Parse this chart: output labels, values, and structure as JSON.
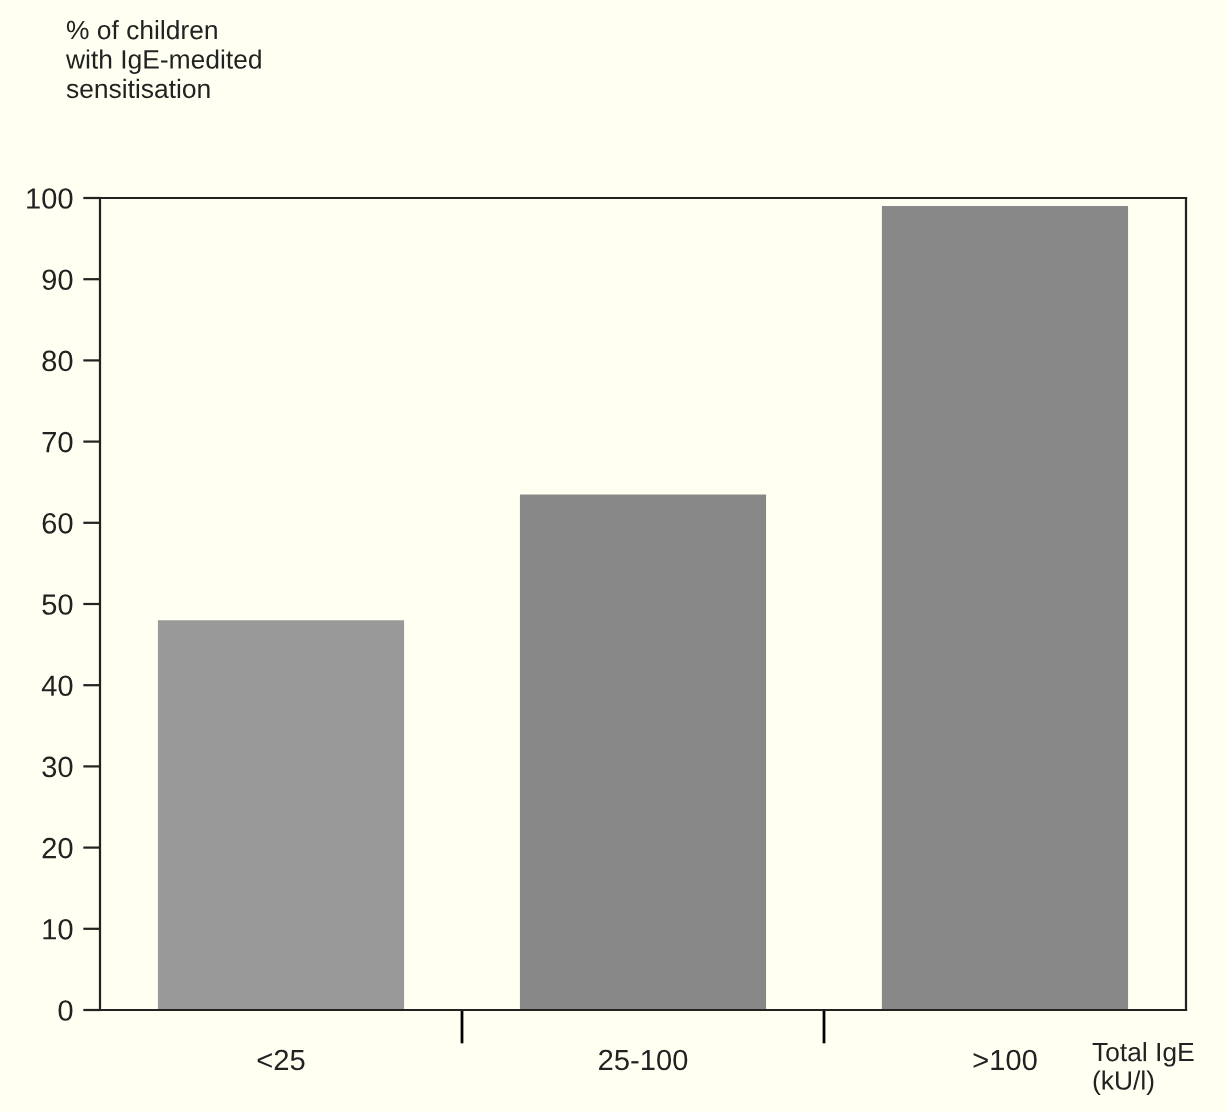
{
  "chart_data": {
    "type": "bar",
    "ylabel": "% of children\nwith IgE-medited\nsensitisation",
    "xlabel": "Total IgE\n(kU/l)",
    "categories": [
      "<25",
      "25-100",
      ">100"
    ],
    "values": [
      48,
      63.5,
      99
    ],
    "colors": [
      "#999999",
      "#888888",
      "#888888"
    ],
    "ylim": [
      0,
      100
    ],
    "yticks": [
      0,
      10,
      20,
      30,
      40,
      50,
      60,
      70,
      80,
      90,
      100
    ],
    "grid": false
  }
}
